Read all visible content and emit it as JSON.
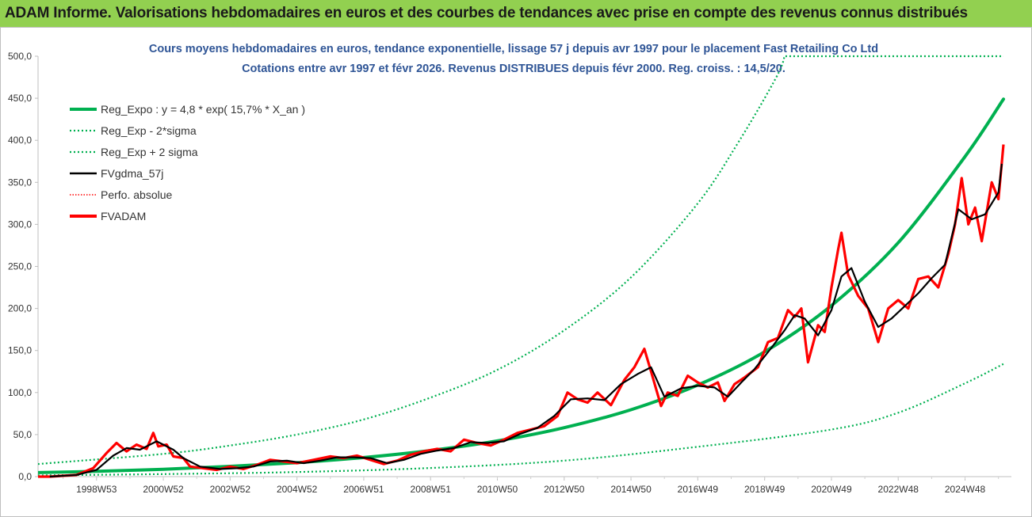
{
  "banner": {
    "title": "ADAM Informe. Valorisations hebdomadaires en euros et des courbes de tendances avec prise en compte des revenus connus distribués"
  },
  "chart_data": {
    "type": "line",
    "title_line1": "Cours moyens hebdomadaires en euros, tendance exponentielle, lissage 57 j depuis avr 1997 pour le placement Fast Retailing Co Ltd",
    "title_line2": "Cotations entre avr 1997 et févr 2026. Revenus DISTRIBUES depuis févr 2000. Reg. croiss. : 14,5/20.",
    "ylim": [
      0,
      500
    ],
    "y_ticks": [
      "0,0",
      "50,0",
      "100,0",
      "150,0",
      "200,0",
      "250,0",
      "300,0",
      "350,0",
      "400,0",
      "450,0",
      "500,0"
    ],
    "x_ticks": [
      {
        "label": "1998W53",
        "t": 1999.0
      },
      {
        "label": "2000W52",
        "t": 2001.0
      },
      {
        "label": "2002W52",
        "t": 2003.0
      },
      {
        "label": "2004W52",
        "t": 2005.0
      },
      {
        "label": "2006W51",
        "t": 2007.0
      },
      {
        "label": "2008W51",
        "t": 2009.0
      },
      {
        "label": "2010W50",
        "t": 2011.0
      },
      {
        "label": "2012W50",
        "t": 2013.0
      },
      {
        "label": "2014W50",
        "t": 2015.0
      },
      {
        "label": "2016W49",
        "t": 2017.0
      },
      {
        "label": "2018W49",
        "t": 2019.0
      },
      {
        "label": "2020W49",
        "t": 2021.0
      },
      {
        "label": "2022W48",
        "t": 2023.0
      },
      {
        "label": "2024W48",
        "t": 2025.0
      }
    ],
    "x_range": [
      1997.25,
      2026.15
    ],
    "grid": false,
    "legend_position": "top-left",
    "colors": {
      "reg_expo": "#00b050",
      "sigma": "#00b050",
      "fvgdma": "#000000",
      "perfo": "#ff0000",
      "fvadam": "#ff0000"
    },
    "series": [
      {
        "name": "Reg_Expo : y = 4,8 * exp( 15,7% * X_an )",
        "style": "solid-thick",
        "values": [
          [
            1997.25,
            4.8
          ],
          [
            1999.0,
            6.3
          ],
          [
            2001.0,
            8.8
          ],
          [
            2003.0,
            12.2
          ],
          [
            2005.0,
            16.6
          ],
          [
            2007.0,
            22.7
          ],
          [
            2009.0,
            31.1
          ],
          [
            2011.0,
            42.5
          ],
          [
            2013.0,
            58.2
          ],
          [
            2015.0,
            79.6
          ],
          [
            2017.0,
            108.9
          ],
          [
            2019.0,
            148.5
          ],
          [
            2021.0,
            203.5
          ],
          [
            2023.0,
            278.2
          ],
          [
            2025.0,
            380.6
          ],
          [
            2026.15,
            449.0
          ]
        ]
      },
      {
        "name": "Reg_Exp - 2*sigma",
        "style": "dotted",
        "values": [
          [
            1997.25,
            1.5
          ],
          [
            2001.0,
            3.0
          ],
          [
            2005.0,
            5.5
          ],
          [
            2009.0,
            10.3
          ],
          [
            2013.0,
            19.0
          ],
          [
            2017.0,
            35.5
          ],
          [
            2021.0,
            56.0
          ],
          [
            2023.0,
            76.0
          ],
          [
            2025.0,
            111.0
          ],
          [
            2026.15,
            134.0
          ]
        ]
      },
      {
        "name": "Reg_Exp + 2 sigma",
        "style": "dotted",
        "values": [
          [
            1997.25,
            15.0
          ],
          [
            2001.0,
            27.0
          ],
          [
            2003.0,
            37.0
          ],
          [
            2005.0,
            50.0
          ],
          [
            2007.0,
            68.0
          ],
          [
            2009.0,
            94.0
          ],
          [
            2011.0,
            127.0
          ],
          [
            2013.0,
            174.0
          ],
          [
            2015.0,
            237.0
          ],
          [
            2017.0,
            325.0
          ],
          [
            2018.25,
            400.0
          ],
          [
            2019.35,
            475.0
          ],
          [
            2019.6,
            500.0
          ]
        ]
      },
      {
        "name": "FVgdma_57j",
        "style": "solid-thin",
        "values": [
          [
            1997.6,
            0
          ],
          [
            1998.4,
            2
          ],
          [
            1999.0,
            8
          ],
          [
            1999.5,
            25
          ],
          [
            1999.9,
            34
          ],
          [
            2000.3,
            32
          ],
          [
            2000.8,
            42
          ],
          [
            2001.3,
            32
          ],
          [
            2001.6,
            22
          ],
          [
            2002.1,
            12
          ],
          [
            2002.7,
            9
          ],
          [
            2003.2,
            10
          ],
          [
            2003.7,
            12
          ],
          [
            2004.2,
            18
          ],
          [
            2004.7,
            19
          ],
          [
            2005.2,
            16
          ],
          [
            2005.7,
            19
          ],
          [
            2006.2,
            23
          ],
          [
            2006.7,
            23
          ],
          [
            2007.2,
            22
          ],
          [
            2007.7,
            16
          ],
          [
            2008.2,
            20
          ],
          [
            2008.7,
            27
          ],
          [
            2009.2,
            31
          ],
          [
            2009.7,
            34
          ],
          [
            2010.2,
            41
          ],
          [
            2010.7,
            40
          ],
          [
            2011.2,
            42
          ],
          [
            2011.7,
            51
          ],
          [
            2012.2,
            58
          ],
          [
            2012.7,
            72
          ],
          [
            2013.2,
            92
          ],
          [
            2013.7,
            93
          ],
          [
            2014.2,
            91
          ],
          [
            2014.7,
            110
          ],
          [
            2015.2,
            122
          ],
          [
            2015.6,
            130
          ],
          [
            2016.0,
            95
          ],
          [
            2016.5,
            105
          ],
          [
            2017.0,
            108
          ],
          [
            2017.5,
            106
          ],
          [
            2017.9,
            95
          ],
          [
            2018.3,
            112
          ],
          [
            2018.7,
            128
          ],
          [
            2019.2,
            153
          ],
          [
            2019.6,
            174
          ],
          [
            2019.9,
            192
          ],
          [
            2020.2,
            188
          ],
          [
            2020.6,
            168
          ],
          [
            2021.0,
            198
          ],
          [
            2021.3,
            238
          ],
          [
            2021.6,
            248
          ],
          [
            2022.0,
            208
          ],
          [
            2022.4,
            178
          ],
          [
            2022.8,
            188
          ],
          [
            2023.2,
            203
          ],
          [
            2023.6,
            218
          ],
          [
            2024.0,
            236
          ],
          [
            2024.4,
            252
          ],
          [
            2024.8,
            318
          ],
          [
            2025.2,
            306
          ],
          [
            2025.6,
            312
          ],
          [
            2026.0,
            338
          ],
          [
            2026.1,
            372
          ]
        ]
      },
      {
        "name": "Perfo. absolue",
        "style": "dotted-red",
        "values": [
          [
            1997.25,
            0
          ],
          [
            1997.6,
            0
          ]
        ]
      },
      {
        "name": "FVADAM",
        "style": "solid-red",
        "values": [
          [
            1997.25,
            0
          ],
          [
            1997.6,
            0
          ],
          [
            1998.4,
            2
          ],
          [
            1998.9,
            10
          ],
          [
            1999.3,
            28
          ],
          [
            1999.6,
            40
          ],
          [
            1999.9,
            30
          ],
          [
            2000.2,
            38
          ],
          [
            2000.5,
            33
          ],
          [
            2000.7,
            52
          ],
          [
            2000.85,
            36
          ],
          [
            2001.1,
            38
          ],
          [
            2001.3,
            24
          ],
          [
            2001.6,
            22
          ],
          [
            2001.8,
            12
          ],
          [
            2002.2,
            10
          ],
          [
            2002.6,
            8
          ],
          [
            2003.0,
            12
          ],
          [
            2003.4,
            9
          ],
          [
            2003.8,
            14
          ],
          [
            2004.2,
            20
          ],
          [
            2004.6,
            18
          ],
          [
            2005.0,
            16
          ],
          [
            2005.5,
            20
          ],
          [
            2006.0,
            24
          ],
          [
            2006.4,
            22
          ],
          [
            2006.8,
            25
          ],
          [
            2007.2,
            20
          ],
          [
            2007.6,
            15
          ],
          [
            2008.0,
            19
          ],
          [
            2008.4,
            26
          ],
          [
            2008.8,
            30
          ],
          [
            2009.2,
            33
          ],
          [
            2009.6,
            30
          ],
          [
            2010.0,
            44
          ],
          [
            2010.4,
            40
          ],
          [
            2010.8,
            37
          ],
          [
            2011.2,
            44
          ],
          [
            2011.6,
            52
          ],
          [
            2012.0,
            56
          ],
          [
            2012.4,
            60
          ],
          [
            2012.8,
            72
          ],
          [
            2013.1,
            100
          ],
          [
            2013.4,
            92
          ],
          [
            2013.7,
            88
          ],
          [
            2014.0,
            100
          ],
          [
            2014.4,
            85
          ],
          [
            2014.8,
            115
          ],
          [
            2015.1,
            130
          ],
          [
            2015.4,
            152
          ],
          [
            2015.6,
            125
          ],
          [
            2015.9,
            84
          ],
          [
            2016.1,
            100
          ],
          [
            2016.4,
            96
          ],
          [
            2016.7,
            120
          ],
          [
            2017.0,
            112
          ],
          [
            2017.3,
            106
          ],
          [
            2017.6,
            112
          ],
          [
            2017.8,
            90
          ],
          [
            2018.1,
            110
          ],
          [
            2018.4,
            118
          ],
          [
            2018.8,
            130
          ],
          [
            2019.1,
            160
          ],
          [
            2019.4,
            165
          ],
          [
            2019.7,
            198
          ],
          [
            2019.9,
            190
          ],
          [
            2020.1,
            200
          ],
          [
            2020.3,
            136
          ],
          [
            2020.6,
            180
          ],
          [
            2020.8,
            172
          ],
          [
            2021.0,
            225
          ],
          [
            2021.2,
            270
          ],
          [
            2021.3,
            290
          ],
          [
            2021.5,
            240
          ],
          [
            2021.8,
            215
          ],
          [
            2022.1,
            200
          ],
          [
            2022.4,
            160
          ],
          [
            2022.7,
            200
          ],
          [
            2023.0,
            210
          ],
          [
            2023.3,
            200
          ],
          [
            2023.6,
            235
          ],
          [
            2023.9,
            238
          ],
          [
            2024.2,
            225
          ],
          [
            2024.5,
            265
          ],
          [
            2024.7,
            300
          ],
          [
            2024.9,
            355
          ],
          [
            2025.1,
            300
          ],
          [
            2025.3,
            320
          ],
          [
            2025.5,
            280
          ],
          [
            2025.8,
            350
          ],
          [
            2026.0,
            330
          ],
          [
            2026.15,
            395
          ]
        ]
      }
    ]
  }
}
